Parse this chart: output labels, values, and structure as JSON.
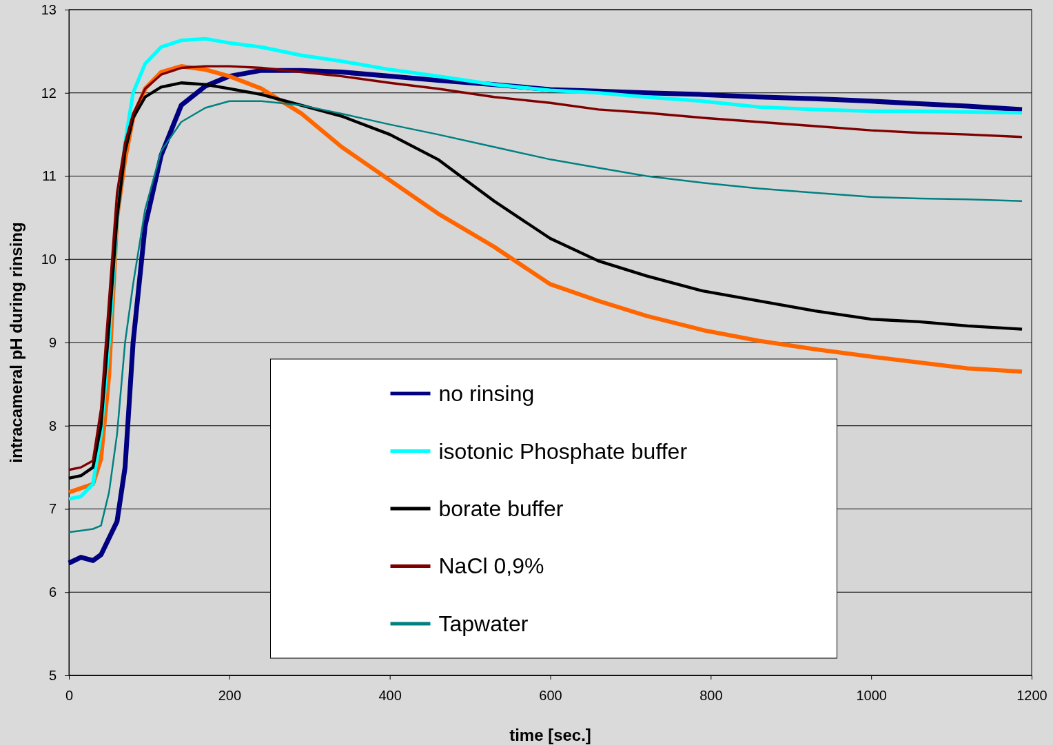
{
  "chart_data": {
    "type": "line",
    "xlabel": "time [sec.]",
    "ylabel": "intracameral  pH during rinsing",
    "xlim": [
      0,
      1200
    ],
    "xticks": [
      0,
      200,
      400,
      600,
      800,
      1000,
      1200
    ],
    "ylim": [
      5,
      13
    ],
    "yticks": [
      5,
      6,
      7,
      8,
      9,
      10,
      11,
      12,
      13
    ],
    "grid": "y",
    "legend": "bottom",
    "marker": "none",
    "line_style": "solid",
    "x": [
      0,
      15,
      30,
      40,
      50,
      60,
      70,
      80,
      95,
      115,
      140,
      170,
      200,
      240,
      290,
      340,
      400,
      460,
      530,
      600,
      660,
      720,
      790,
      860,
      930,
      1000,
      1060,
      1120,
      1188
    ],
    "series": [
      {
        "name": "no rinsing",
        "color": "#000080",
        "values": [
          6.35,
          6.42,
          6.38,
          6.45,
          6.65,
          6.85,
          7.5,
          9.0,
          10.4,
          11.25,
          11.85,
          12.08,
          12.2,
          12.27,
          12.27,
          12.25,
          12.2,
          12.15,
          12.1,
          12.04,
          12.02,
          12.0,
          11.98,
          11.95,
          11.93,
          11.9,
          11.87,
          11.84,
          11.8
        ]
      },
      {
        "color": "#ff6600",
        "values": [
          7.2,
          7.25,
          7.3,
          7.6,
          8.6,
          10.5,
          11.2,
          11.7,
          12.05,
          12.25,
          12.32,
          12.28,
          12.2,
          12.05,
          11.75,
          11.35,
          10.95,
          10.55,
          10.15,
          9.7,
          9.5,
          9.32,
          9.15,
          9.02,
          8.92,
          8.83,
          8.76,
          8.69,
          8.65
        ]
      },
      {
        "name": "isotonic Phosphate buffer",
        "color": "#00ffff",
        "values": [
          7.12,
          7.15,
          7.3,
          7.9,
          9.0,
          10.5,
          11.4,
          12.0,
          12.35,
          12.55,
          12.63,
          12.65,
          12.6,
          12.55,
          12.45,
          12.38,
          12.28,
          12.2,
          12.1,
          12.03,
          12.0,
          11.95,
          11.9,
          11.83,
          11.8,
          11.78,
          11.78,
          11.77,
          11.76
        ]
      },
      {
        "name": "borate buffer",
        "color": "#000000",
        "values": [
          7.37,
          7.4,
          7.5,
          8.0,
          9.2,
          10.5,
          11.3,
          11.7,
          11.95,
          12.07,
          12.12,
          12.1,
          12.05,
          11.98,
          11.85,
          11.72,
          11.5,
          11.2,
          10.7,
          10.25,
          9.98,
          9.8,
          9.62,
          9.5,
          9.38,
          9.28,
          9.25,
          9.2,
          9.16
        ]
      },
      {
        "name": "NaCl 0,9%",
        "color": "#800000",
        "values": [
          7.47,
          7.5,
          7.58,
          8.2,
          9.5,
          10.8,
          11.4,
          11.75,
          12.05,
          12.22,
          12.3,
          12.32,
          12.32,
          12.3,
          12.25,
          12.2,
          12.12,
          12.05,
          11.95,
          11.88,
          11.8,
          11.76,
          11.7,
          11.65,
          11.6,
          11.55,
          11.52,
          11.5,
          11.47
        ]
      },
      {
        "name": "Tapwater",
        "color": "#008080",
        "values": [
          6.72,
          6.74,
          6.76,
          6.8,
          7.2,
          7.9,
          9.0,
          9.7,
          10.6,
          11.3,
          11.65,
          11.82,
          11.9,
          11.9,
          11.85,
          11.75,
          11.62,
          11.5,
          11.35,
          11.2,
          11.1,
          11.0,
          10.92,
          10.85,
          10.8,
          10.75,
          10.73,
          10.72,
          10.7
        ]
      }
    ]
  }
}
